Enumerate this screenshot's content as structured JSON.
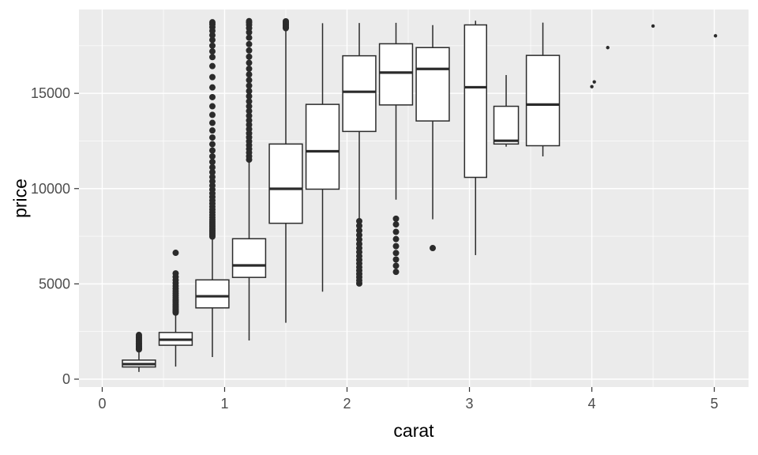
{
  "chart_data": {
    "type": "boxplot",
    "title": "",
    "xlabel": "carat",
    "ylabel": "price",
    "x_ticks": [
      0,
      1,
      2,
      3,
      4,
      5
    ],
    "y_ticks": [
      0,
      5000,
      10000,
      15000
    ],
    "x_minor": [
      0.5,
      1.5,
      2.5,
      3.5,
      4.5
    ],
    "y_minor": [
      2500,
      7500,
      12500,
      17500
    ],
    "xlim": [
      -0.19,
      5.28
    ],
    "ylim": [
      -415,
      19400
    ],
    "legend": "none",
    "grid": "on",
    "colors": {
      "panel_bg": "#EBEBEB",
      "grid": "#FFFFFF",
      "stroke": "#2B2B2B",
      "box_fill": "#FFFFFF",
      "tick_text": "#4D4D4D",
      "tick_mark": "#333333",
      "title_text": "#000000"
    },
    "boxes": [
      {
        "x": 0.3,
        "width": 0.27,
        "low": 380,
        "q1": 640,
        "median": 790,
        "q3": 1000,
        "high": 1540,
        "outliers": [
          1560,
          1610,
          1660,
          1720,
          1780,
          1840,
          1900,
          1960,
          2030,
          2100,
          2170,
          2240,
          2320
        ]
      },
      {
        "x": 0.6,
        "width": 0.27,
        "low": 660,
        "q1": 1780,
        "median": 2070,
        "q3": 2450,
        "high": 3440,
        "outliers": [
          3490,
          3550,
          3610,
          3680,
          3750,
          3830,
          3910,
          4000,
          4090,
          4180,
          4280,
          4390,
          4500,
          4620,
          4750,
          4890,
          5040,
          5200,
          5370,
          5550,
          6630
        ]
      },
      {
        "x": 0.9,
        "width": 0.27,
        "low": 1160,
        "q1": 3740,
        "median": 4350,
        "q3": 5210,
        "high": 7390,
        "outliers": [
          7480,
          7560,
          7650,
          7740,
          7830,
          7930,
          8030,
          8140,
          8250,
          8370,
          8490,
          8620,
          8760,
          8900,
          9050,
          9210,
          9380,
          9560,
          9750,
          9950,
          10160,
          10380,
          10610,
          10860,
          11120,
          11400,
          11690,
          12000,
          12330,
          12680,
          13050,
          13450,
          13870,
          14320,
          14800,
          15310,
          15850,
          16430,
          16900,
          17200,
          17500,
          17800,
          18050,
          18280,
          18470,
          18620,
          18730
        ]
      },
      {
        "x": 1.2,
        "width": 0.27,
        "low": 2030,
        "q1": 5340,
        "median": 5970,
        "q3": 7370,
        "high": 11400,
        "outliers": [
          11520,
          11700,
          11890,
          12080,
          12280,
          12480,
          12690,
          12900,
          13120,
          13350,
          13580,
          13820,
          14070,
          14320,
          14580,
          14850,
          15120,
          15400,
          15690,
          15990,
          16290,
          16600,
          16920,
          17250,
          17580,
          17920,
          18200,
          18420,
          18590,
          18710,
          18790
        ]
      },
      {
        "x": 1.5,
        "width": 0.27,
        "low": 2960,
        "q1": 8180,
        "median": 9990,
        "q3": 12340,
        "high": 18340,
        "outliers": [
          18420,
          18480,
          18540,
          18600,
          18660,
          18720,
          18780
        ]
      },
      {
        "x": 1.8,
        "width": 0.27,
        "low": 4590,
        "q1": 9970,
        "median": 11960,
        "q3": 14420,
        "high": 18680,
        "outliers": []
      },
      {
        "x": 2.1,
        "width": 0.27,
        "low": 8310,
        "q1": 13000,
        "median": 15080,
        "q3": 16970,
        "high": 18690,
        "outliers": [
          5020,
          5180,
          5350,
          5520,
          5700,
          5880,
          6070,
          6260,
          6460,
          6670,
          6880,
          7100,
          7330,
          7560,
          7800,
          8050,
          8290
        ]
      },
      {
        "x": 2.4,
        "width": 0.27,
        "low": 9420,
        "q1": 14390,
        "median": 16090,
        "q3": 17600,
        "high": 18700,
        "outliers": [
          5630,
          5950,
          6280,
          6620,
          6980,
          7350,
          7730,
          8120,
          8420
        ]
      },
      {
        "x": 2.7,
        "width": 0.27,
        "low": 8390,
        "q1": 13550,
        "median": 16280,
        "q3": 17400,
        "high": 18580,
        "outliers": [
          6880
        ]
      },
      {
        "x": 3.05,
        "width": 0.18,
        "low": 6510,
        "q1": 10590,
        "median": 15320,
        "q3": 18590,
        "high": 18810,
        "outliers": []
      },
      {
        "x": 3.3,
        "width": 0.2,
        "low": 12200,
        "q1": 12340,
        "median": 12510,
        "q3": 14320,
        "high": 15960,
        "outliers": []
      },
      {
        "x": 3.6,
        "width": 0.27,
        "low": 11690,
        "q1": 12250,
        "median": 14410,
        "q3": 16990,
        "high": 18710,
        "outliers": []
      }
    ],
    "points": [
      {
        "x": 4.0,
        "y": 15350
      },
      {
        "x": 4.02,
        "y": 15600
      },
      {
        "x": 4.13,
        "y": 17400
      },
      {
        "x": 4.5,
        "y": 18530
      },
      {
        "x": 5.01,
        "y": 18020
      }
    ]
  }
}
